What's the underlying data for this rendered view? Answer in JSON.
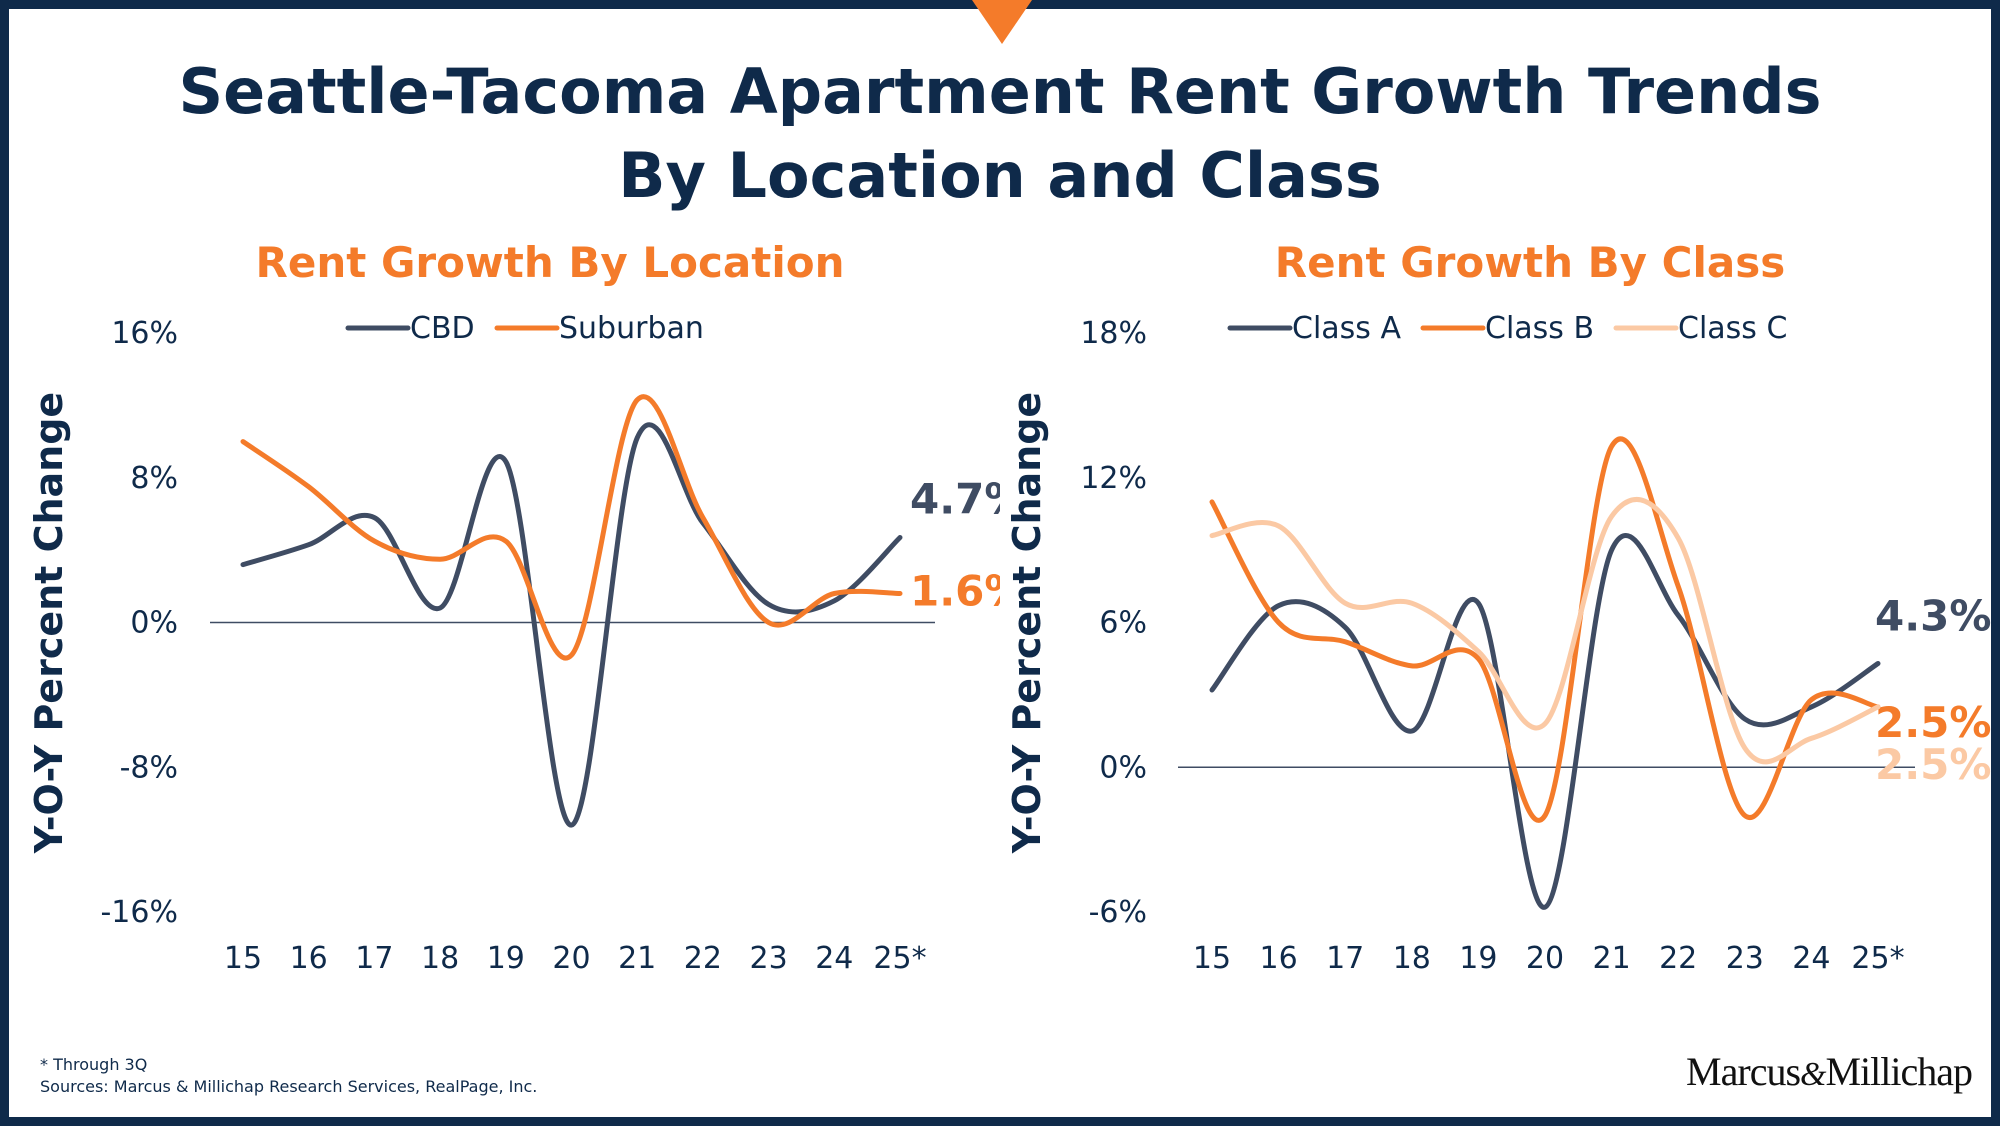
{
  "title": {
    "line1": "Seattle-Tacoma Apartment Rent Growth Trends",
    "line2": "By Location and Class"
  },
  "footnotes": {
    "through": "* Through 3Q",
    "sources": "Sources: Marcus & Millichap Research Services, RealPage, Inc."
  },
  "logo": {
    "left": "Marcus",
    "amp": "&",
    "right": "Millichap"
  },
  "colors": {
    "navy": "#3f4c63",
    "orange": "#f47b2a",
    "peach": "#fbc9a4",
    "title": "#0f2a4a"
  },
  "chart_data": [
    {
      "type": "line",
      "title": "Rent Growth By Location",
      "ylabel": "Y-O-Y Percent Change",
      "xlabel": "",
      "categories": [
        "15",
        "16",
        "17",
        "18",
        "19",
        "20",
        "21",
        "22",
        "23",
        "24",
        "25*"
      ],
      "ylim": [
        -16,
        16
      ],
      "yticks": [
        "16%",
        "8%",
        "0%",
        "-8%",
        "-16%"
      ],
      "ytick_values": [
        16,
        8,
        0,
        -8,
        -16
      ],
      "legend": "top",
      "grid": false,
      "series": [
        {
          "name": "CBD",
          "color": "#3f4c63",
          "values": [
            3.2,
            4.3,
            5.8,
            0.8,
            8.9,
            -11.2,
            10.2,
            5.5,
            1.0,
            1.2,
            4.7
          ],
          "end_label": "4.7%"
        },
        {
          "name": "Suburban",
          "color": "#f47b2a",
          "values": [
            10.0,
            7.5,
            4.5,
            3.5,
            4.5,
            -1.8,
            12.3,
            5.8,
            0.0,
            1.6,
            1.6
          ],
          "end_label": "1.6%"
        }
      ]
    },
    {
      "type": "line",
      "title": "Rent Growth By Class",
      "ylabel": "Y-O-Y Percent Change",
      "xlabel": "",
      "categories": [
        "15",
        "16",
        "17",
        "18",
        "19",
        "20",
        "21",
        "22",
        "23",
        "24",
        "25*"
      ],
      "ylim": [
        -6,
        18
      ],
      "yticks": [
        "18%",
        "12%",
        "6%",
        "0%",
        "-6%"
      ],
      "ytick_values": [
        18,
        12,
        6,
        0,
        -6
      ],
      "legend": "top",
      "grid": false,
      "series": [
        {
          "name": "Class A",
          "color": "#3f4c63",
          "values": [
            3.2,
            6.7,
            5.8,
            1.5,
            6.8,
            -5.8,
            9.0,
            6.3,
            2.0,
            2.5,
            4.3
          ],
          "end_label": "4.3%"
        },
        {
          "name": "Class B",
          "color": "#f47b2a",
          "values": [
            11.0,
            6.0,
            5.2,
            4.2,
            4.5,
            -2.0,
            13.3,
            7.5,
            -2.0,
            2.8,
            2.5
          ],
          "end_label": "2.5%"
        },
        {
          "name": "Class C",
          "color": "#fbc9a4",
          "values": [
            9.6,
            10.0,
            6.8,
            6.8,
            4.8,
            1.8,
            10.4,
            9.5,
            0.8,
            1.2,
            2.5
          ],
          "end_label": "2.5%"
        }
      ]
    }
  ]
}
